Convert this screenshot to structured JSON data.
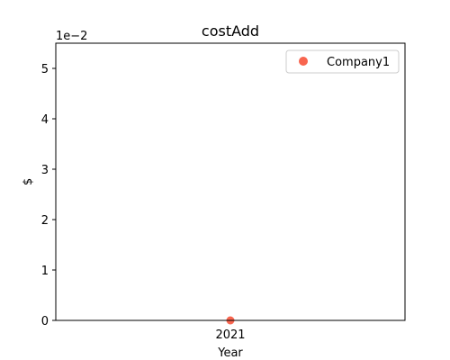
{
  "chart_data": {
    "type": "scatter",
    "title": "costAdd",
    "xlabel": "Year",
    "ylabel": "$",
    "y_offset_text": "1e−2",
    "x_categories": [
      "2021"
    ],
    "ylim": [
      0,
      0.055
    ],
    "y_ticks": [
      0,
      0.01,
      0.02,
      0.03,
      0.04,
      0.05
    ],
    "y_tick_labels": [
      "0",
      "1",
      "2",
      "3",
      "4",
      "5"
    ],
    "grid": false,
    "legend_position": "top-right",
    "series": [
      {
        "name": "Company1",
        "color": "#f8654f",
        "points": [
          {
            "x": "2021",
            "y": 0
          }
        ]
      }
    ]
  }
}
